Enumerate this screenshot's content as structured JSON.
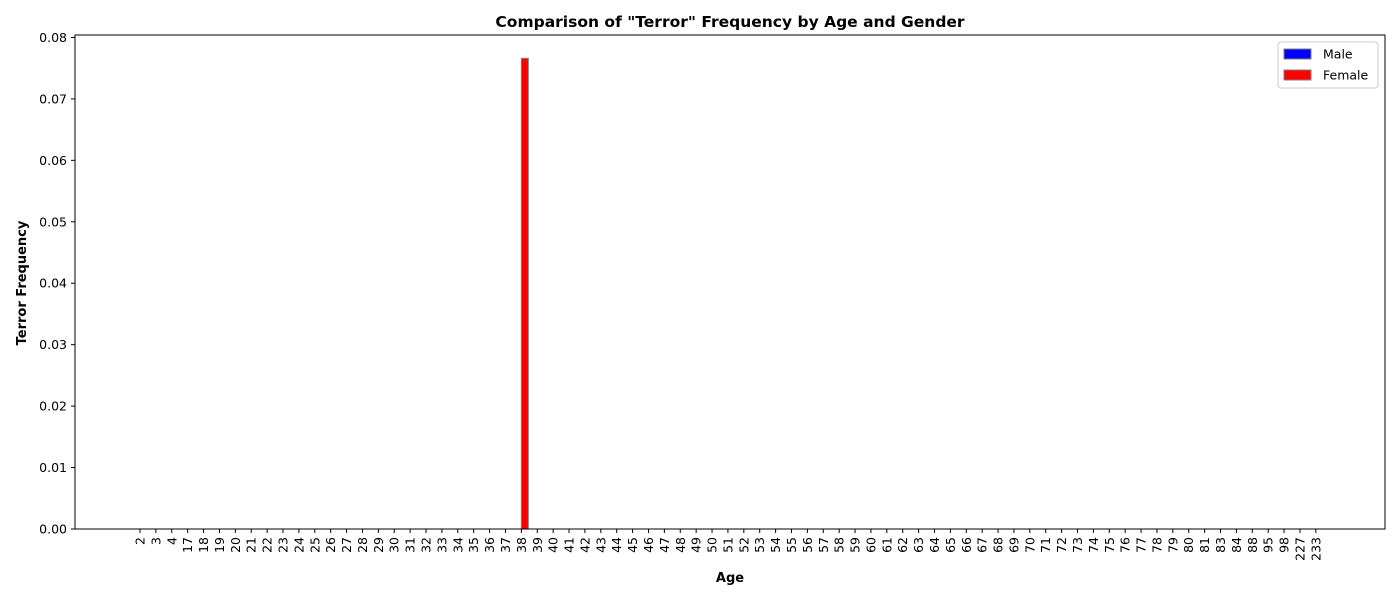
{
  "chart_data": {
    "type": "bar",
    "title": "Comparison of \"Terror\" Frequency by Age and Gender",
    "xlabel": "Age",
    "ylabel": "Terror Frequency",
    "ylim": [
      0,
      0.08
    ],
    "yticks": [
      "0.00",
      "0.01",
      "0.02",
      "0.03",
      "0.04",
      "0.05",
      "0.06",
      "0.07",
      "0.08"
    ],
    "grid": false,
    "legend_position": "top-right",
    "categories": [
      "2",
      "3",
      "4",
      "17",
      "18",
      "19",
      "20",
      "21",
      "22",
      "23",
      "24",
      "25",
      "26",
      "27",
      "28",
      "29",
      "30",
      "31",
      "32",
      "33",
      "34",
      "35",
      "36",
      "37",
      "38",
      "39",
      "40",
      "41",
      "42",
      "43",
      "44",
      "45",
      "46",
      "47",
      "48",
      "49",
      "50",
      "51",
      "52",
      "53",
      "54",
      "55",
      "56",
      "57",
      "58",
      "59",
      "60",
      "61",
      "62",
      "63",
      "64",
      "65",
      "66",
      "67",
      "68",
      "69",
      "70",
      "71",
      "72",
      "73",
      "74",
      "75",
      "76",
      "77",
      "78",
      "79",
      "80",
      "81",
      "83",
      "84",
      "88",
      "95",
      "98",
      "227",
      "233"
    ],
    "series": [
      {
        "name": "Male",
        "color": "#0000ff",
        "values": [
          0,
          0,
          0,
          0,
          0,
          0,
          0,
          0,
          0,
          0,
          0,
          0,
          0,
          0,
          0,
          0,
          0,
          0,
          0,
          0,
          0,
          0,
          0,
          0,
          0,
          0,
          0,
          0,
          0,
          0,
          0,
          0,
          0,
          0,
          0,
          0,
          0,
          0,
          0,
          0,
          0,
          0,
          0,
          0,
          0,
          0,
          0,
          0,
          0,
          0,
          0,
          0,
          0,
          0,
          0,
          0,
          0,
          0,
          0,
          0,
          0,
          0,
          0,
          0,
          0,
          0,
          0,
          0,
          0,
          0,
          0,
          0,
          0,
          0,
          0
        ]
      },
      {
        "name": "Female",
        "color": "#ff0000",
        "values": [
          0,
          0,
          0,
          0,
          0,
          0,
          0,
          0,
          0,
          0,
          0,
          0,
          0,
          0,
          0,
          0,
          0,
          0,
          0,
          0,
          0,
          0,
          0,
          0,
          0.0766,
          0,
          0,
          0,
          0,
          0,
          0,
          0,
          0,
          0,
          0,
          0,
          0,
          0,
          0,
          0,
          0,
          0,
          0,
          0,
          0,
          0,
          0,
          0,
          0,
          0,
          0,
          0,
          0,
          0,
          0,
          0,
          0,
          0,
          0,
          0,
          0,
          0,
          0,
          0,
          0,
          0,
          0,
          0,
          0,
          0,
          0,
          0,
          0,
          0,
          0
        ]
      }
    ]
  }
}
